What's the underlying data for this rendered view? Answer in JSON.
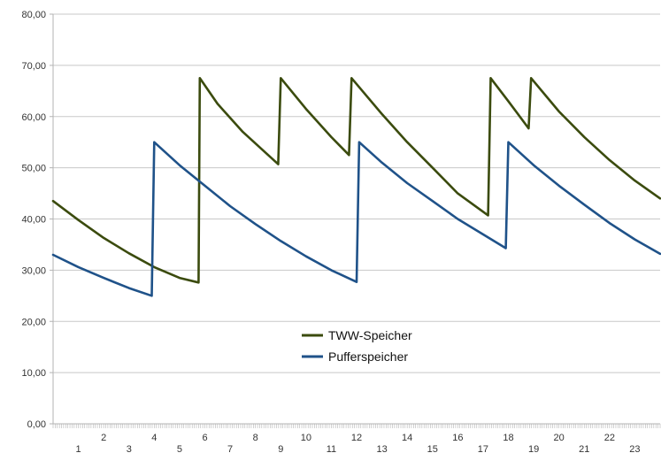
{
  "chart_data": {
    "type": "line",
    "title": "",
    "xlabel": "",
    "ylabel": "",
    "ylim": [
      0,
      80
    ],
    "yticks": [
      "0,00",
      "10,00",
      "20,00",
      "30,00",
      "40,00",
      "50,00",
      "60,00",
      "70,00",
      "80,00"
    ],
    "xlim": [
      0,
      24
    ],
    "xticks_upper": [
      "2",
      "4",
      "6",
      "8",
      "10",
      "12",
      "14",
      "16",
      "18",
      "20",
      "22"
    ],
    "xticks_lower": [
      "1",
      "3",
      "5",
      "7",
      "9",
      "11",
      "13",
      "15",
      "17",
      "19",
      "21",
      "23"
    ],
    "grid": "horizontal",
    "legend_position": "center",
    "series": [
      {
        "name": "TWW-Speicher",
        "color": "#3b4b0e",
        "points": [
          [
            0.0,
            43.5
          ],
          [
            1.0,
            39.8
          ],
          [
            2.0,
            36.3
          ],
          [
            3.0,
            33.3
          ],
          [
            4.0,
            30.6
          ],
          [
            5.0,
            28.5
          ],
          [
            5.75,
            27.6
          ],
          [
            5.8,
            67.5
          ],
          [
            6.5,
            62.5
          ],
          [
            7.5,
            57.0
          ],
          [
            8.5,
            52.5
          ],
          [
            8.9,
            50.7
          ],
          [
            9.0,
            67.5
          ],
          [
            10.0,
            61.5
          ],
          [
            11.0,
            56.0
          ],
          [
            11.7,
            52.5
          ],
          [
            11.8,
            67.5
          ],
          [
            13.0,
            60.5
          ],
          [
            14.0,
            55.0
          ],
          [
            15.0,
            50.0
          ],
          [
            16.0,
            45.0
          ],
          [
            17.2,
            40.7
          ],
          [
            17.3,
            67.5
          ],
          [
            18.0,
            63.0
          ],
          [
            18.8,
            57.7
          ],
          [
            18.9,
            67.5
          ],
          [
            20.0,
            61.0
          ],
          [
            21.0,
            56.0
          ],
          [
            22.0,
            51.5
          ],
          [
            23.0,
            47.5
          ],
          [
            24.0,
            44.0
          ]
        ]
      },
      {
        "name": "Pufferspeicher",
        "color": "#1f5289",
        "points": [
          [
            0.0,
            33.0
          ],
          [
            1.0,
            30.6
          ],
          [
            2.0,
            28.5
          ],
          [
            3.0,
            26.5
          ],
          [
            3.9,
            25.0
          ],
          [
            4.0,
            55.0
          ],
          [
            5.0,
            50.5
          ],
          [
            6.0,
            46.5
          ],
          [
            7.0,
            42.5
          ],
          [
            8.0,
            39.0
          ],
          [
            9.0,
            35.7
          ],
          [
            10.0,
            32.7
          ],
          [
            11.0,
            30.0
          ],
          [
            12.0,
            27.7
          ],
          [
            12.1,
            55.0
          ],
          [
            13.0,
            51.0
          ],
          [
            14.0,
            47.0
          ],
          [
            15.0,
            43.5
          ],
          [
            16.0,
            40.0
          ],
          [
            17.0,
            37.0
          ],
          [
            17.9,
            34.3
          ],
          [
            18.0,
            55.0
          ],
          [
            19.0,
            50.5
          ],
          [
            20.0,
            46.5
          ],
          [
            21.0,
            42.8
          ],
          [
            22.0,
            39.2
          ],
          [
            23.0,
            36.0
          ],
          [
            24.0,
            33.2
          ]
        ]
      }
    ]
  }
}
